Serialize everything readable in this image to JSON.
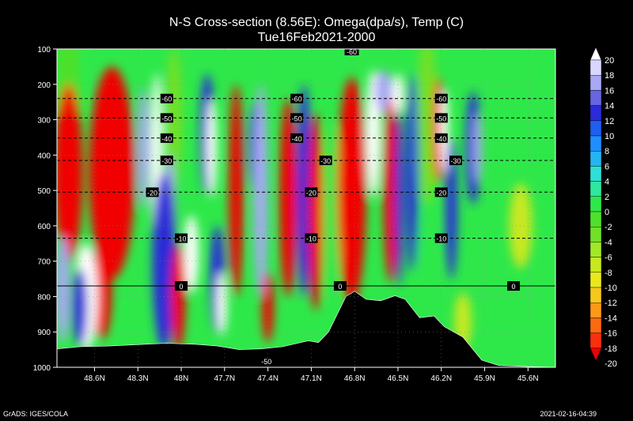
{
  "chart_data": {
    "type": "heatmap",
    "title": "N-S Cross-section (8.56E): Omega(dpa/s), Temp (C)",
    "subtitle": "Tue16Feb2021-2000",
    "x_ticks": [
      "48.6N",
      "48.3N",
      "48N",
      "47.7N",
      "47.4N",
      "47.1N",
      "46.8N",
      "46.5N",
      "46.2N",
      "45.9N",
      "45.6N"
    ],
    "y_ticks": [
      100,
      200,
      300,
      400,
      500,
      600,
      700,
      800,
      900,
      1000
    ],
    "ylim": [
      1000,
      100
    ],
    "colorbar": {
      "values": [
        20,
        18,
        16,
        14,
        12,
        10,
        8,
        6,
        4,
        2,
        0,
        -2,
        -4,
        -6,
        -8,
        -10,
        -12,
        -14,
        -16,
        -18,
        -20
      ],
      "colors": [
        "#ffffff",
        "#d8d8ff",
        "#a8a8f4",
        "#6666e0",
        "#2b2bd8",
        "#1e5ef0",
        "#1f8fff",
        "#25b5f0",
        "#2ee0d8",
        "#2ee8a0",
        "#2ee84a",
        "#4ee02c",
        "#72e028",
        "#a0e828",
        "#c8e820",
        "#e8e81c",
        "#f5c81a",
        "#fa9a16",
        "#fa6a10",
        "#f83010",
        "#f00000"
      ]
    },
    "temperature_isotherms": [
      {
        "label": "-60",
        "p": 240,
        "label_lat": [
          48.1,
          47.2,
          46.2
        ]
      },
      {
        "label": "-50",
        "p": 295,
        "label_lat": [
          48.1,
          47.2,
          46.2
        ]
      },
      {
        "label": "-40",
        "p": 352,
        "label_lat": [
          48.1,
          47.2,
          46.2
        ]
      },
      {
        "label": "-30",
        "p": 415,
        "label_lat": [
          48.1,
          47.0,
          46.1
        ]
      },
      {
        "label": "-20",
        "p": 505,
        "label_lat": [
          48.2,
          47.1,
          46.2
        ]
      },
      {
        "label": "-10",
        "p": 635,
        "label_lat": [
          48.0,
          47.1,
          46.2
        ]
      },
      {
        "label": "0",
        "p": 770,
        "label_lat": [
          48.0,
          46.9,
          45.7
        ]
      }
    ],
    "top_isotherm_label": "-60",
    "cold_label": "-50"
  },
  "footer": {
    "left": "GrADS: IGES/COLA",
    "right": "2021-02-16-04:39"
  }
}
